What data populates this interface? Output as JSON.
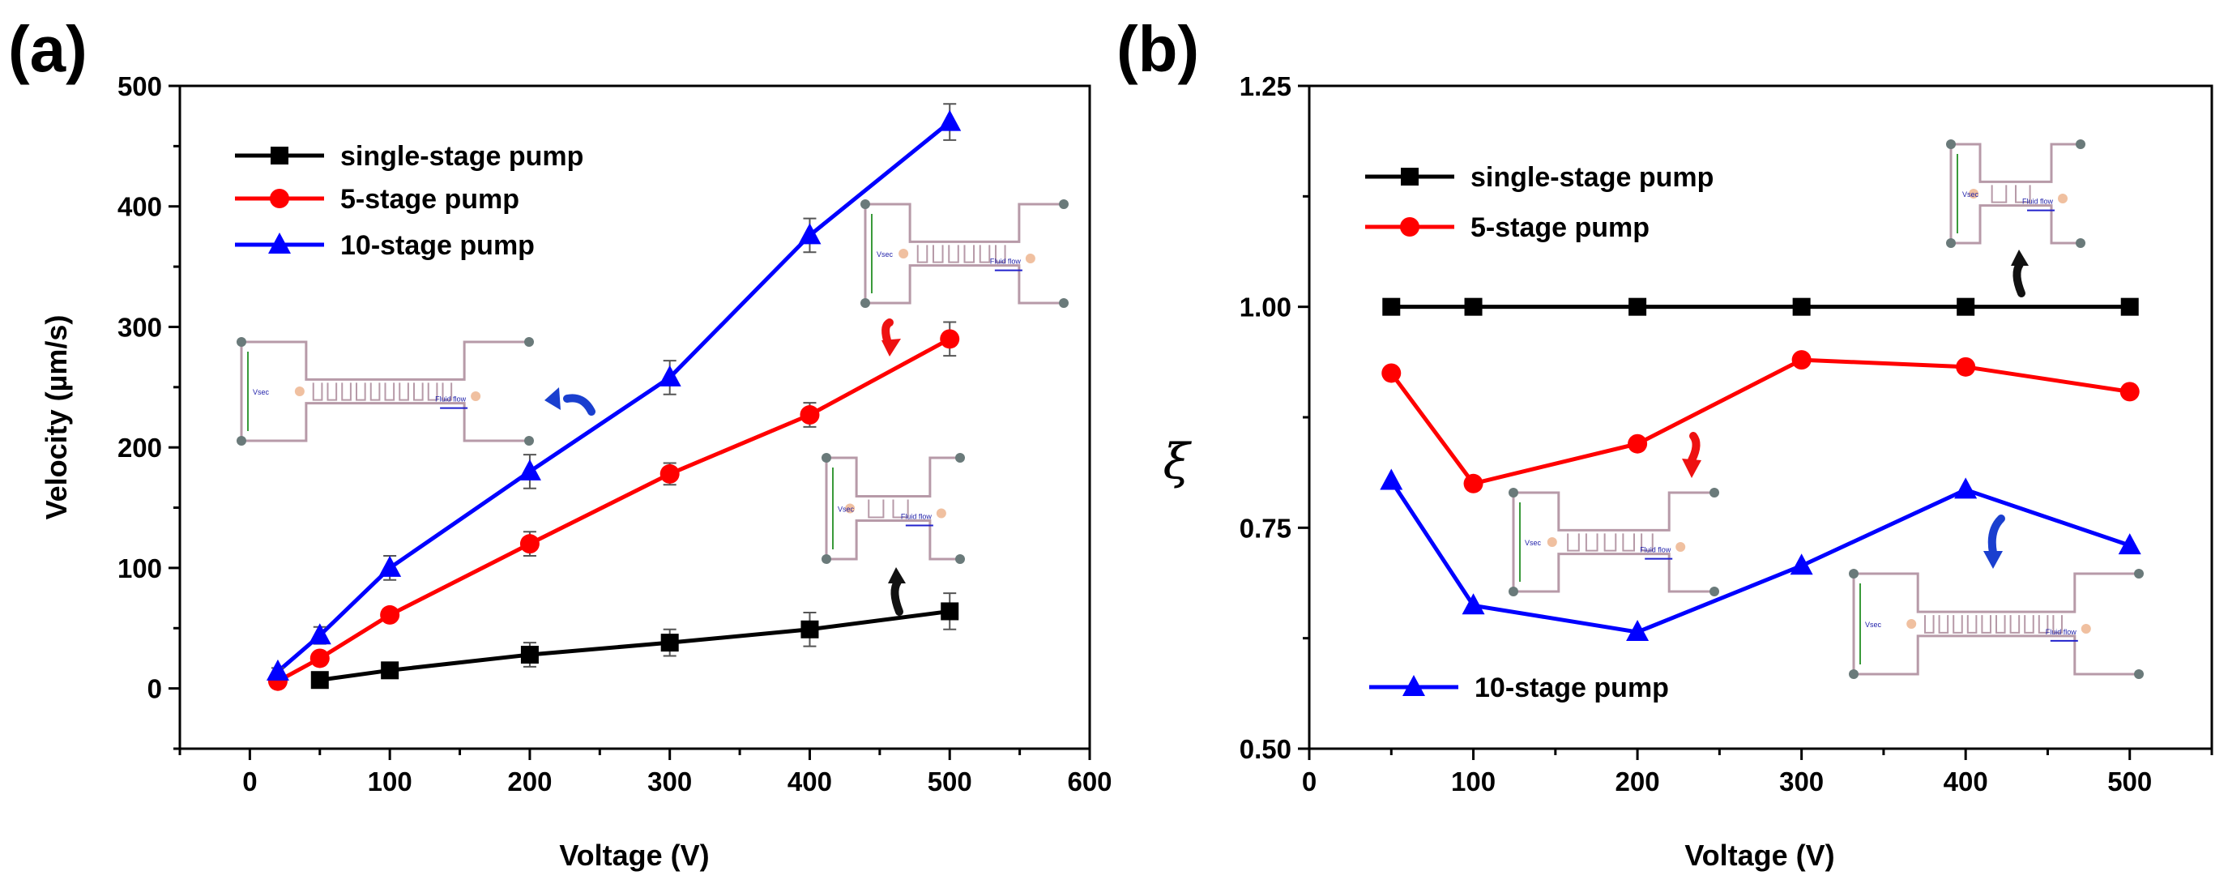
{
  "chart_data": [
    {
      "type": "line",
      "panel_label": "(a)",
      "xlabel": "Voltage (V)",
      "ylabel": "Velocity (µm/s)",
      "xlim": [
        -50,
        600
      ],
      "ylim": [
        -50,
        500
      ],
      "xticks": [
        0,
        100,
        200,
        300,
        400,
        500,
        600
      ],
      "yticks": [
        0,
        100,
        200,
        300,
        400,
        500
      ],
      "xtick_labels": [
        "0",
        "100",
        "200",
        "300",
        "400",
        "500",
        "600"
      ],
      "ytick_labels": [
        "0",
        "100",
        "200",
        "300",
        "400",
        "500"
      ],
      "legend_position": "top-left",
      "series": [
        {
          "name": "single-stage pump",
          "color": "#000000",
          "marker": "square",
          "x": [
            50,
            100,
            200,
            300,
            400,
            500
          ],
          "y": [
            7,
            15,
            28,
            38,
            49,
            64
          ],
          "err": [
            4,
            5,
            10,
            11,
            14,
            15
          ]
        },
        {
          "name": "5-stage pump",
          "color": "#ff0000",
          "marker": "circle",
          "x": [
            20,
            50,
            100,
            200,
            300,
            400,
            500
          ],
          "y": [
            6,
            25,
            61,
            120,
            178,
            227,
            290
          ],
          "err": [
            3,
            4,
            5,
            10,
            9,
            10,
            14
          ]
        },
        {
          "name": "10-stage pump",
          "color": "#0000ff",
          "marker": "triangle",
          "x": [
            20,
            50,
            100,
            200,
            300,
            400,
            500
          ],
          "y": [
            14,
            44,
            100,
            180,
            258,
            376,
            470
          ],
          "err": [
            3,
            7,
            10,
            14,
            14,
            14,
            15
          ]
        }
      ]
    },
    {
      "type": "line",
      "panel_label": "(b)",
      "xlabel": "Voltage (V)",
      "ylabel": "ξ",
      "xlim": [
        0,
        550
      ],
      "ylim": [
        0.5,
        1.25
      ],
      "xticks": [
        0,
        100,
        200,
        300,
        400,
        500
      ],
      "yticks": [
        0.5,
        0.75,
        1.0,
        1.25
      ],
      "xtick_labels": [
        "0",
        "100",
        "200",
        "300",
        "400",
        "500"
      ],
      "ytick_labels": [
        "0.50",
        "0.75",
        "1.00",
        "1.25"
      ],
      "legend_position": "top-left (10-stage entry at bottom-left)",
      "series": [
        {
          "name": "single-stage pump",
          "color": "#000000",
          "marker": "square",
          "x": [
            50,
            100,
            200,
            300,
            400,
            500
          ],
          "y": [
            1.0,
            1.0,
            1.0,
            1.0,
            1.0,
            1.0
          ]
        },
        {
          "name": "5-stage pump",
          "color": "#ff0000",
          "marker": "circle",
          "x": [
            50,
            100,
            200,
            300,
            400,
            500
          ],
          "y": [
            0.925,
            0.8,
            0.845,
            0.94,
            0.932,
            0.904
          ]
        },
        {
          "name": "10-stage pump",
          "color": "#0000ff",
          "marker": "triangle",
          "x": [
            50,
            100,
            200,
            300,
            400,
            500
          ],
          "y": [
            0.803,
            0.662,
            0.632,
            0.707,
            0.793,
            0.73
          ]
        }
      ]
    }
  ],
  "inset": {
    "voltage_symbol": "V",
    "voltage_subscript": "sec",
    "flow_label": "Fluid flow"
  }
}
